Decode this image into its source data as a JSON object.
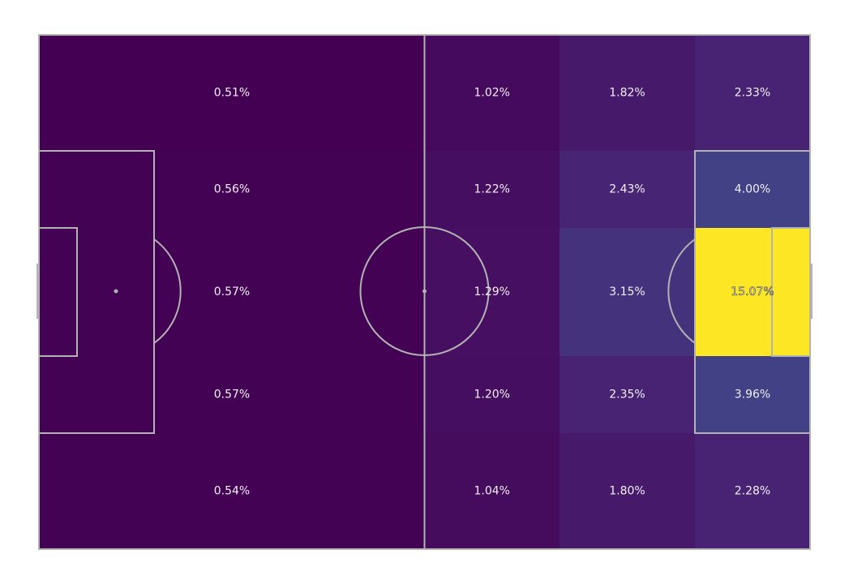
{
  "chart_data": {
    "type": "heatmap",
    "title": "",
    "xlabel": "",
    "ylabel": "",
    "colorscale": "viridis",
    "color_range": [
      0.51,
      15.07
    ],
    "pitch_line_color": "#b3b3b3",
    "zone_value_unit": "%",
    "rows": [
      {
        "name": "row-1",
        "cells": [
          {
            "value": 0.51,
            "label": "0.51%"
          },
          {
            "value": 1.02,
            "label": "1.02%"
          },
          {
            "value": 1.82,
            "label": "1.82%"
          },
          {
            "value": 2.33,
            "label": "2.33%"
          }
        ]
      },
      {
        "name": "row-2",
        "cells": [
          {
            "value": 0.56,
            "label": "0.56%"
          },
          {
            "value": 1.22,
            "label": "1.22%"
          },
          {
            "value": 2.43,
            "label": "2.43%"
          },
          {
            "value": 4.0,
            "label": "4.00%"
          }
        ]
      },
      {
        "name": "row-3",
        "cells": [
          {
            "value": 0.57,
            "label": "0.57%"
          },
          {
            "value": 1.29,
            "label": "1.29%"
          },
          {
            "value": 3.15,
            "label": "3.15%"
          },
          {
            "value": 15.07,
            "label": "15.07%"
          }
        ]
      },
      {
        "name": "row-4",
        "cells": [
          {
            "value": 0.57,
            "label": "0.57%"
          },
          {
            "value": 1.2,
            "label": "1.20%"
          },
          {
            "value": 2.35,
            "label": "2.35%"
          },
          {
            "value": 3.96,
            "label": "3.96%"
          }
        ]
      },
      {
        "name": "row-5",
        "cells": [
          {
            "value": 0.54,
            "label": "0.54%"
          },
          {
            "value": 1.04,
            "label": "1.04%"
          },
          {
            "value": 1.8,
            "label": "1.80%"
          },
          {
            "value": 2.28,
            "label": "2.28%"
          }
        ]
      }
    ]
  }
}
